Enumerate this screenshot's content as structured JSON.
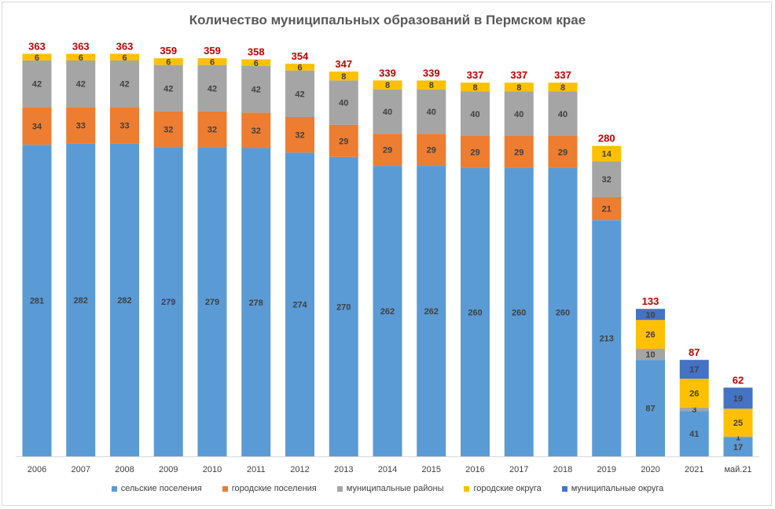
{
  "chart_data": {
    "type": "bar",
    "stacked": true,
    "title": "Количество муниципальных образований в Пермском крае",
    "xlabel": "",
    "ylabel": "",
    "categories": [
      "2006",
      "2007",
      "2008",
      "2009",
      "2010",
      "2011",
      "2012",
      "2013",
      "2014",
      "2015",
      "2016",
      "2017",
      "2018",
      "2019",
      "2020",
      "2021",
      "май.21"
    ],
    "series": [
      {
        "name": "сельские поселения",
        "color": "#5b9bd5",
        "values": [
          281,
          282,
          282,
          279,
          279,
          278,
          274,
          270,
          262,
          262,
          260,
          260,
          260,
          213,
          87,
          41,
          17
        ]
      },
      {
        "name": "городские поселения",
        "color": "#ed7d31",
        "values": [
          34,
          33,
          33,
          32,
          32,
          32,
          32,
          29,
          29,
          29,
          29,
          29,
          29,
          21,
          0,
          0,
          0
        ]
      },
      {
        "name": "муниципальные районы",
        "color": "#a5a5a5",
        "values": [
          42,
          42,
          42,
          42,
          42,
          42,
          42,
          40,
          40,
          40,
          40,
          40,
          40,
          32,
          10,
          3,
          1
        ]
      },
      {
        "name": "городские округа",
        "color": "#ffc000",
        "values": [
          6,
          6,
          6,
          6,
          6,
          6,
          6,
          8,
          8,
          8,
          8,
          8,
          8,
          14,
          26,
          26,
          25
        ]
      },
      {
        "name": "муниципальные округа",
        "color": "#4472c4",
        "values": [
          0,
          0,
          0,
          0,
          0,
          0,
          0,
          0,
          0,
          0,
          0,
          0,
          0,
          0,
          10,
          17,
          19
        ]
      }
    ],
    "totals": [
      363,
      363,
      363,
      359,
      359,
      358,
      354,
      347,
      339,
      339,
      337,
      337,
      337,
      280,
      133,
      87,
      62
    ],
    "total_color": "#c00000",
    "legend_position": "bottom",
    "grid": false
  }
}
